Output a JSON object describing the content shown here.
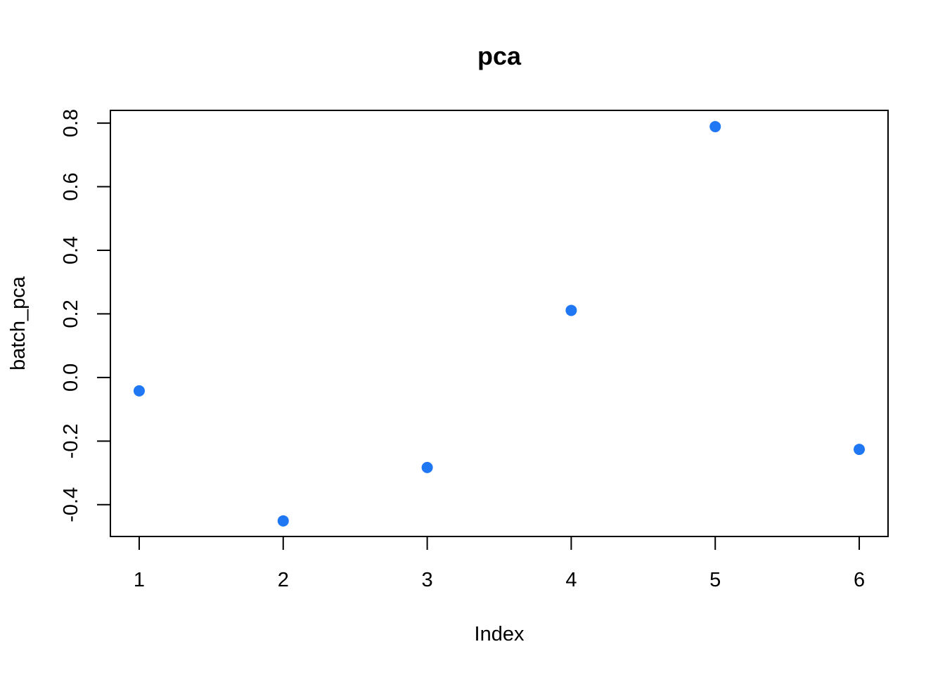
{
  "chart_data": {
    "type": "scatter",
    "title": "pca",
    "xlabel": "Index",
    "ylabel": "batch_pca",
    "x": [
      1,
      2,
      3,
      4,
      5,
      6
    ],
    "y": [
      -0.042,
      -0.451,
      -0.283,
      0.211,
      0.789,
      -0.226
    ],
    "xlim": [
      0.8,
      6.2
    ],
    "ylim": [
      -0.5,
      0.84
    ],
    "xticks": [
      1,
      2,
      3,
      4,
      5,
      6
    ],
    "xtick_labels": [
      "1",
      "2",
      "3",
      "4",
      "5",
      "6"
    ],
    "yticks": [
      -0.4,
      -0.2,
      0.0,
      0.2,
      0.4,
      0.6,
      0.8
    ],
    "ytick_labels": [
      "-0.4",
      "-0.2",
      "0.0",
      "0.2",
      "0.4",
      "0.6",
      "0.8"
    ],
    "point_color": "#1f77f4",
    "grid": false,
    "legend": "none"
  }
}
